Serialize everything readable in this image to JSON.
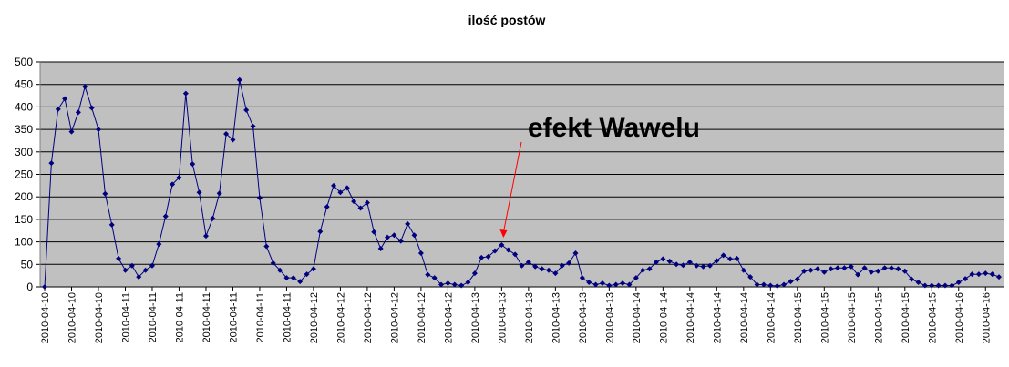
{
  "chart_data": {
    "type": "line",
    "title": "ilość postów",
    "xlabel": "",
    "ylabel": "",
    "ylim": [
      0,
      500
    ],
    "yticks": [
      0,
      50,
      100,
      150,
      200,
      250,
      300,
      350,
      400,
      450,
      500
    ],
    "grid": true,
    "legend": "none",
    "plot_background": "#c0c0c0",
    "line_color": "#000080",
    "arrow_color": "#ff0000",
    "x_tick_labels": [
      "2010-04-10",
      "2010-04-10",
      "2010-04-10",
      "2010-04-11",
      "2010-04-11",
      "2010-04-11",
      "2010-04-11",
      "2010-04-11",
      "2010-04-11",
      "2010-04-11",
      "2010-04-12",
      "2010-04-12",
      "2010-04-12",
      "2010-04-12",
      "2010-04-12",
      "2010-04-12",
      "2010-04-13",
      "2010-04-13",
      "2010-04-13",
      "2010-04-13",
      "2010-04-13",
      "2010-04-13",
      "2010-04-14",
      "2010-04-14",
      "2010-04-14",
      "2010-04-14",
      "2010-04-14",
      "2010-04-14",
      "2010-04-15",
      "2010-04-15",
      "2010-04-15",
      "2010-04-15",
      "2010-04-15",
      "2010-04-15",
      "2010-04-16",
      "2010-04-16",
      "2010-04-16"
    ],
    "values": [
      0,
      275,
      395,
      418,
      345,
      388,
      445,
      398,
      350,
      207,
      138,
      63,
      37,
      47,
      22,
      37,
      47,
      95,
      157,
      228,
      243,
      430,
      273,
      210,
      113,
      152,
      208,
      340,
      327,
      460,
      393,
      357,
      198,
      90,
      53,
      37,
      20,
      20,
      12,
      28,
      40,
      123,
      178,
      225,
      210,
      220,
      190,
      175,
      187,
      122,
      85,
      110,
      115,
      102,
      140,
      115,
      75,
      27,
      20,
      5,
      8,
      5,
      3,
      10,
      30,
      65,
      67,
      80,
      93,
      82,
      72,
      47,
      55,
      45,
      40,
      37,
      30,
      47,
      53,
      75,
      20,
      10,
      5,
      8,
      3,
      5,
      8,
      5,
      20,
      37,
      40,
      55,
      62,
      57,
      50,
      48,
      55,
      47,
      45,
      47,
      58,
      70,
      62,
      63,
      37,
      22,
      5,
      5,
      3,
      2,
      5,
      12,
      17,
      35,
      37,
      40,
      33,
      40,
      42,
      42,
      45,
      27,
      42,
      33,
      35,
      42,
      42,
      40,
      35,
      17,
      10,
      3,
      3,
      3,
      3,
      3,
      10,
      18,
      28,
      28,
      30,
      28,
      22
    ],
    "annotation": {
      "text": "efekt Wawelu",
      "target_index": 68
    }
  }
}
